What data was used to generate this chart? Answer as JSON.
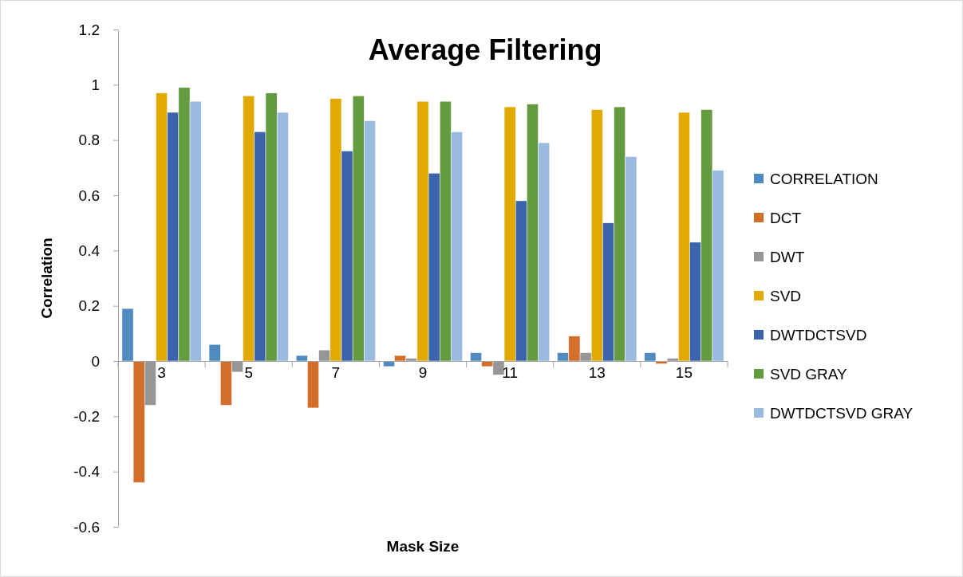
{
  "chart_data": {
    "type": "bar",
    "title": "Average Filtering",
    "xlabel": "Mask Size",
    "ylabel": "Correlation",
    "categories": [
      "3",
      "5",
      "7",
      "9",
      "11",
      "13",
      "15"
    ],
    "series": [
      {
        "name": "CORRELATION",
        "color": "#4f8bc0",
        "values": [
          0.19,
          0.06,
          0.02,
          -0.02,
          0.03,
          0.03,
          0.03
        ]
      },
      {
        "name": "DCT",
        "color": "#d46e2b",
        "values": [
          -0.44,
          -0.16,
          -0.17,
          0.02,
          -0.02,
          0.09,
          -0.01
        ]
      },
      {
        "name": "DWT",
        "color": "#969696",
        "values": [
          -0.16,
          -0.04,
          0.04,
          0.01,
          -0.05,
          0.03,
          0.01
        ]
      },
      {
        "name": "SVD",
        "color": "#e2aa00",
        "values": [
          0.97,
          0.96,
          0.95,
          0.94,
          0.92,
          0.91,
          0.9
        ]
      },
      {
        "name": "DWTDCTSVD",
        "color": "#3c64ad",
        "values": [
          0.9,
          0.83,
          0.76,
          0.68,
          0.58,
          0.5,
          0.43
        ]
      },
      {
        "name": "SVD GRAY",
        "color": "#659b40",
        "values": [
          0.99,
          0.97,
          0.96,
          0.94,
          0.93,
          0.92,
          0.91
        ]
      },
      {
        "name": "DWTDCTSVD GRAY",
        "color": "#9abae0",
        "values": [
          0.94,
          0.9,
          0.87,
          0.83,
          0.79,
          0.74,
          0.69
        ]
      }
    ],
    "ylim": [
      -0.6,
      1.2
    ],
    "yticks": [
      -0.6,
      -0.4,
      -0.2,
      0,
      0.2,
      0.4,
      0.6,
      0.8,
      1,
      1.2
    ],
    "legend": "right"
  }
}
